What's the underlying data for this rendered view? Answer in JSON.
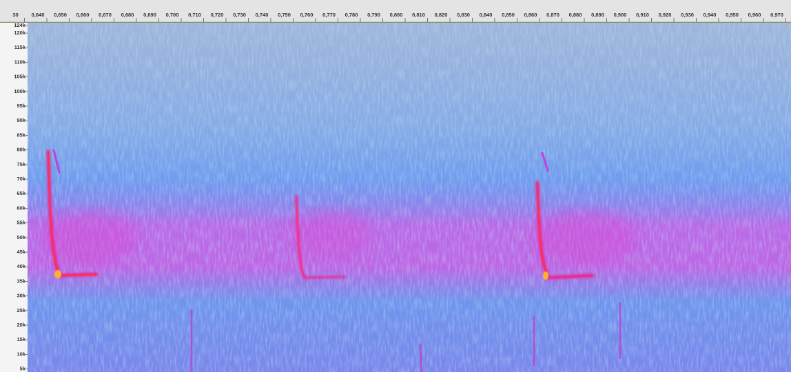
{
  "time_ruler": {
    "labels": [
      "30",
      "0,640",
      "0,650",
      "0,660",
      "0,670",
      "0,680",
      "0,690",
      "0,700",
      "0,710",
      "0,720",
      "0,730",
      "0,740",
      "0,750",
      "0,760",
      "0,770",
      "0,780",
      "0,790",
      "0,800",
      "0,810",
      "0,820",
      "0,830",
      "0,840",
      "0,850",
      "0,860",
      "0,870",
      "0,880",
      "0,890",
      "0,900",
      "0,910",
      "0,920",
      "0,930",
      "0,940",
      "0,950",
      "0,960",
      "0,970"
    ]
  },
  "frequency_axis": {
    "labels": [
      "124k",
      "120k",
      "115k",
      "110k",
      "105k",
      "100k",
      "95k",
      "90k",
      "85k",
      "80k",
      "75k",
      "70k",
      "65k",
      "60k",
      "55k",
      "50k",
      "45k",
      "40k",
      "35k",
      "30k",
      "25k",
      "20k",
      "15k",
      "10k",
      "5k"
    ]
  }
}
